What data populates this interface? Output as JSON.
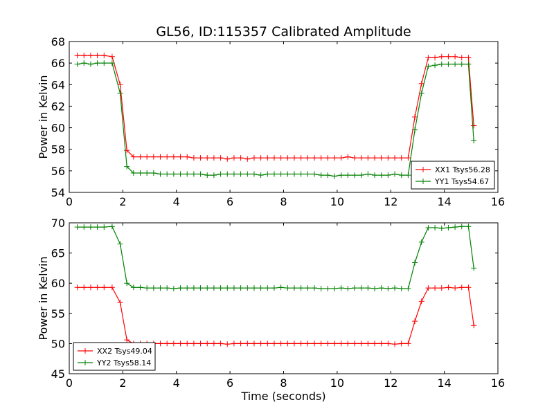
{
  "chart_data": [
    {
      "type": "line",
      "title": "GL56, ID:115357 Calibrated Amplitude",
      "xlabel": "",
      "ylabel": "Power in Kelvin",
      "xlim": [
        0,
        16
      ],
      "ylim": [
        54,
        68
      ],
      "xticks": [
        0,
        2,
        4,
        6,
        8,
        10,
        12,
        14,
        16
      ],
      "yticks": [
        54,
        56,
        58,
        60,
        62,
        64,
        66,
        68
      ],
      "legend_position": "lower-right",
      "x": [
        0.3,
        0.55,
        0.8,
        1.05,
        1.3,
        1.6,
        1.9,
        2.15,
        2.4,
        2.65,
        2.9,
        3.15,
        3.4,
        3.65,
        3.9,
        4.15,
        4.4,
        4.65,
        4.9,
        5.15,
        5.4,
        5.65,
        5.9,
        6.15,
        6.4,
        6.65,
        6.9,
        7.15,
        7.4,
        7.65,
        7.9,
        8.15,
        8.4,
        8.65,
        8.9,
        9.15,
        9.4,
        9.65,
        9.9,
        10.15,
        10.4,
        10.65,
        10.9,
        11.15,
        11.4,
        11.65,
        11.9,
        12.15,
        12.4,
        12.65,
        12.9,
        13.15,
        13.4,
        13.65,
        13.9,
        14.15,
        14.4,
        14.65,
        14.9,
        15.1
      ],
      "series": [
        {
          "name": "XX1 Tsys56.28",
          "color": "#ff0000",
          "values": [
            66.7,
            66.7,
            66.7,
            66.7,
            66.7,
            66.6,
            64.0,
            57.9,
            57.3,
            57.3,
            57.3,
            57.3,
            57.3,
            57.3,
            57.3,
            57.3,
            57.3,
            57.2,
            57.2,
            57.2,
            57.2,
            57.2,
            57.1,
            57.2,
            57.2,
            57.1,
            57.2,
            57.2,
            57.2,
            57.2,
            57.2,
            57.2,
            57.2,
            57.2,
            57.2,
            57.2,
            57.2,
            57.2,
            57.2,
            57.2,
            57.3,
            57.2,
            57.2,
            57.2,
            57.2,
            57.2,
            57.2,
            57.2,
            57.2,
            57.2,
            61.0,
            64.1,
            66.5,
            66.5,
            66.6,
            66.6,
            66.6,
            66.5,
            66.5,
            60.2
          ]
        },
        {
          "name": "YY1 Tsys54.67",
          "color": "#008000",
          "values": [
            65.9,
            66.0,
            65.9,
            66.0,
            66.0,
            66.0,
            63.2,
            56.4,
            55.8,
            55.8,
            55.8,
            55.8,
            55.7,
            55.7,
            55.7,
            55.7,
            55.7,
            55.7,
            55.7,
            55.6,
            55.6,
            55.7,
            55.7,
            55.7,
            55.7,
            55.7,
            55.7,
            55.6,
            55.7,
            55.7,
            55.7,
            55.7,
            55.7,
            55.7,
            55.7,
            55.7,
            55.6,
            55.6,
            55.5,
            55.6,
            55.6,
            55.6,
            55.6,
            55.7,
            55.6,
            55.6,
            55.6,
            55.7,
            55.6,
            55.6,
            59.8,
            63.2,
            65.7,
            65.8,
            65.9,
            65.9,
            65.9,
            65.9,
            65.9,
            58.8
          ]
        }
      ]
    },
    {
      "type": "line",
      "title": "",
      "xlabel": "Time (seconds)",
      "ylabel": "Power in Kelvin",
      "xlim": [
        0,
        16
      ],
      "ylim": [
        45,
        70
      ],
      "xticks": [
        0,
        2,
        4,
        6,
        8,
        10,
        12,
        14,
        16
      ],
      "yticks": [
        45,
        50,
        55,
        60,
        65,
        70
      ],
      "legend_position": "lower-left",
      "x": [
        0.3,
        0.55,
        0.8,
        1.05,
        1.3,
        1.6,
        1.9,
        2.15,
        2.4,
        2.65,
        2.9,
        3.15,
        3.4,
        3.65,
        3.9,
        4.15,
        4.4,
        4.65,
        4.9,
        5.15,
        5.4,
        5.65,
        5.9,
        6.15,
        6.4,
        6.65,
        6.9,
        7.15,
        7.4,
        7.65,
        7.9,
        8.15,
        8.4,
        8.65,
        8.9,
        9.15,
        9.4,
        9.65,
        9.9,
        10.15,
        10.4,
        10.65,
        10.9,
        11.15,
        11.4,
        11.65,
        11.9,
        12.15,
        12.4,
        12.65,
        12.9,
        13.15,
        13.4,
        13.65,
        13.9,
        14.15,
        14.4,
        14.65,
        14.9,
        15.1
      ],
      "series": [
        {
          "name": "XX2 Tsys49.04",
          "color": "#ff0000",
          "values": [
            59.3,
            59.3,
            59.3,
            59.3,
            59.3,
            59.3,
            56.8,
            50.6,
            50.0,
            50.0,
            50.0,
            50.0,
            50.0,
            50.0,
            50.0,
            50.0,
            50.0,
            50.0,
            50.0,
            50.0,
            50.0,
            50.0,
            49.9,
            50.0,
            50.0,
            50.0,
            50.0,
            50.0,
            50.0,
            50.0,
            50.0,
            50.0,
            50.0,
            50.0,
            50.0,
            50.0,
            50.0,
            50.0,
            50.0,
            50.0,
            50.0,
            50.0,
            50.0,
            50.0,
            50.0,
            50.0,
            50.0,
            49.9,
            50.0,
            50.0,
            53.7,
            57.0,
            59.2,
            59.2,
            59.2,
            59.3,
            59.2,
            59.3,
            59.3,
            53.0
          ]
        },
        {
          "name": "YY2 Tsys58.14",
          "color": "#008000",
          "values": [
            69.3,
            69.3,
            69.3,
            69.3,
            69.3,
            69.4,
            66.5,
            60.0,
            59.3,
            59.3,
            59.2,
            59.2,
            59.2,
            59.2,
            59.1,
            59.2,
            59.2,
            59.2,
            59.2,
            59.2,
            59.2,
            59.2,
            59.2,
            59.2,
            59.2,
            59.2,
            59.2,
            59.2,
            59.2,
            59.2,
            59.3,
            59.2,
            59.2,
            59.2,
            59.2,
            59.2,
            59.1,
            59.1,
            59.1,
            59.2,
            59.1,
            59.2,
            59.2,
            59.2,
            59.1,
            59.2,
            59.1,
            59.2,
            59.1,
            59.1,
            63.4,
            66.8,
            69.2,
            69.2,
            69.1,
            69.2,
            69.3,
            69.4,
            69.4,
            62.5
          ]
        }
      ]
    }
  ]
}
